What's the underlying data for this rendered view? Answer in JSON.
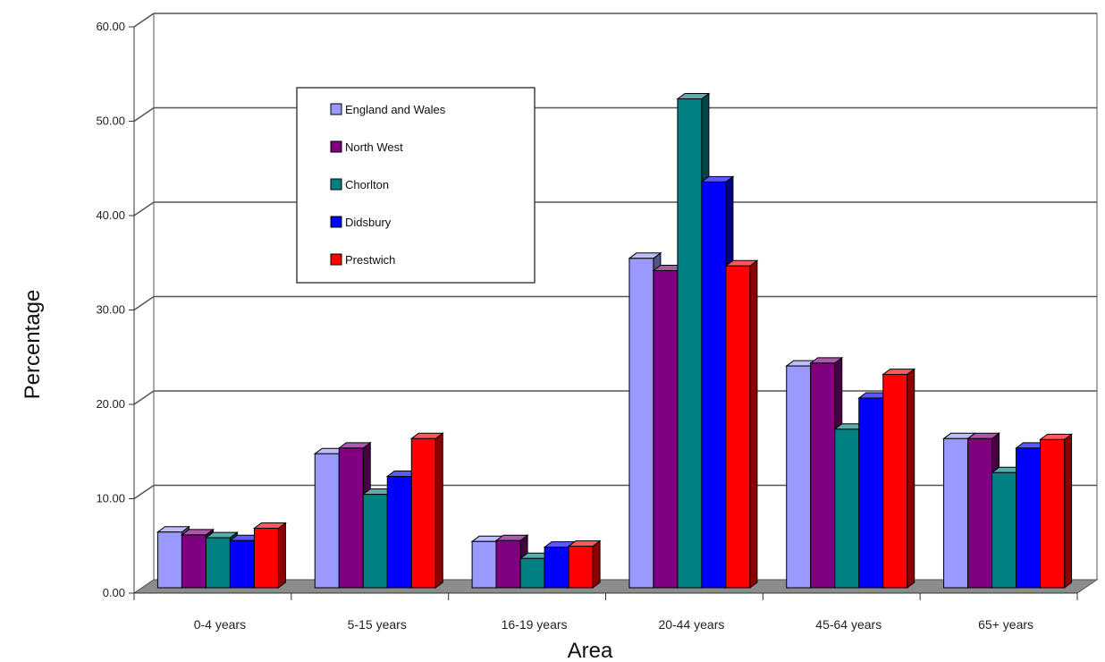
{
  "chart_data": {
    "type": "bar",
    "title": "",
    "xlabel": "Area",
    "ylabel": "Percentage",
    "ylim": [
      0,
      60
    ],
    "yticks": [
      "0.00",
      "10.00",
      "20.00",
      "30.00",
      "40.00",
      "50.00",
      "60.00"
    ],
    "categories": [
      "0-4 years",
      "5-15 years",
      "16-19 years",
      "20-44 years",
      "45-64 years",
      "65+ years"
    ],
    "series": [
      {
        "name": "England and Wales",
        "color": "#9999ff",
        "values": [
          5.9,
          14.2,
          4.9,
          34.9,
          23.5,
          15.8
        ]
      },
      {
        "name": "North West",
        "color": "#800080",
        "values": [
          5.6,
          14.8,
          5.0,
          33.6,
          23.8,
          15.8
        ]
      },
      {
        "name": "Chorlton",
        "color": "#008080",
        "values": [
          5.3,
          9.9,
          3.1,
          51.8,
          16.8,
          12.2
        ]
      },
      {
        "name": "Didsbury",
        "color": "#0000ff",
        "values": [
          5.0,
          11.8,
          4.3,
          43.0,
          20.1,
          14.8
        ]
      },
      {
        "name": "Prestwich",
        "color": "#ff0000",
        "values": [
          6.3,
          15.8,
          4.4,
          34.1,
          22.6,
          15.7
        ]
      }
    ],
    "grid": true,
    "legend_position": "top-left"
  }
}
